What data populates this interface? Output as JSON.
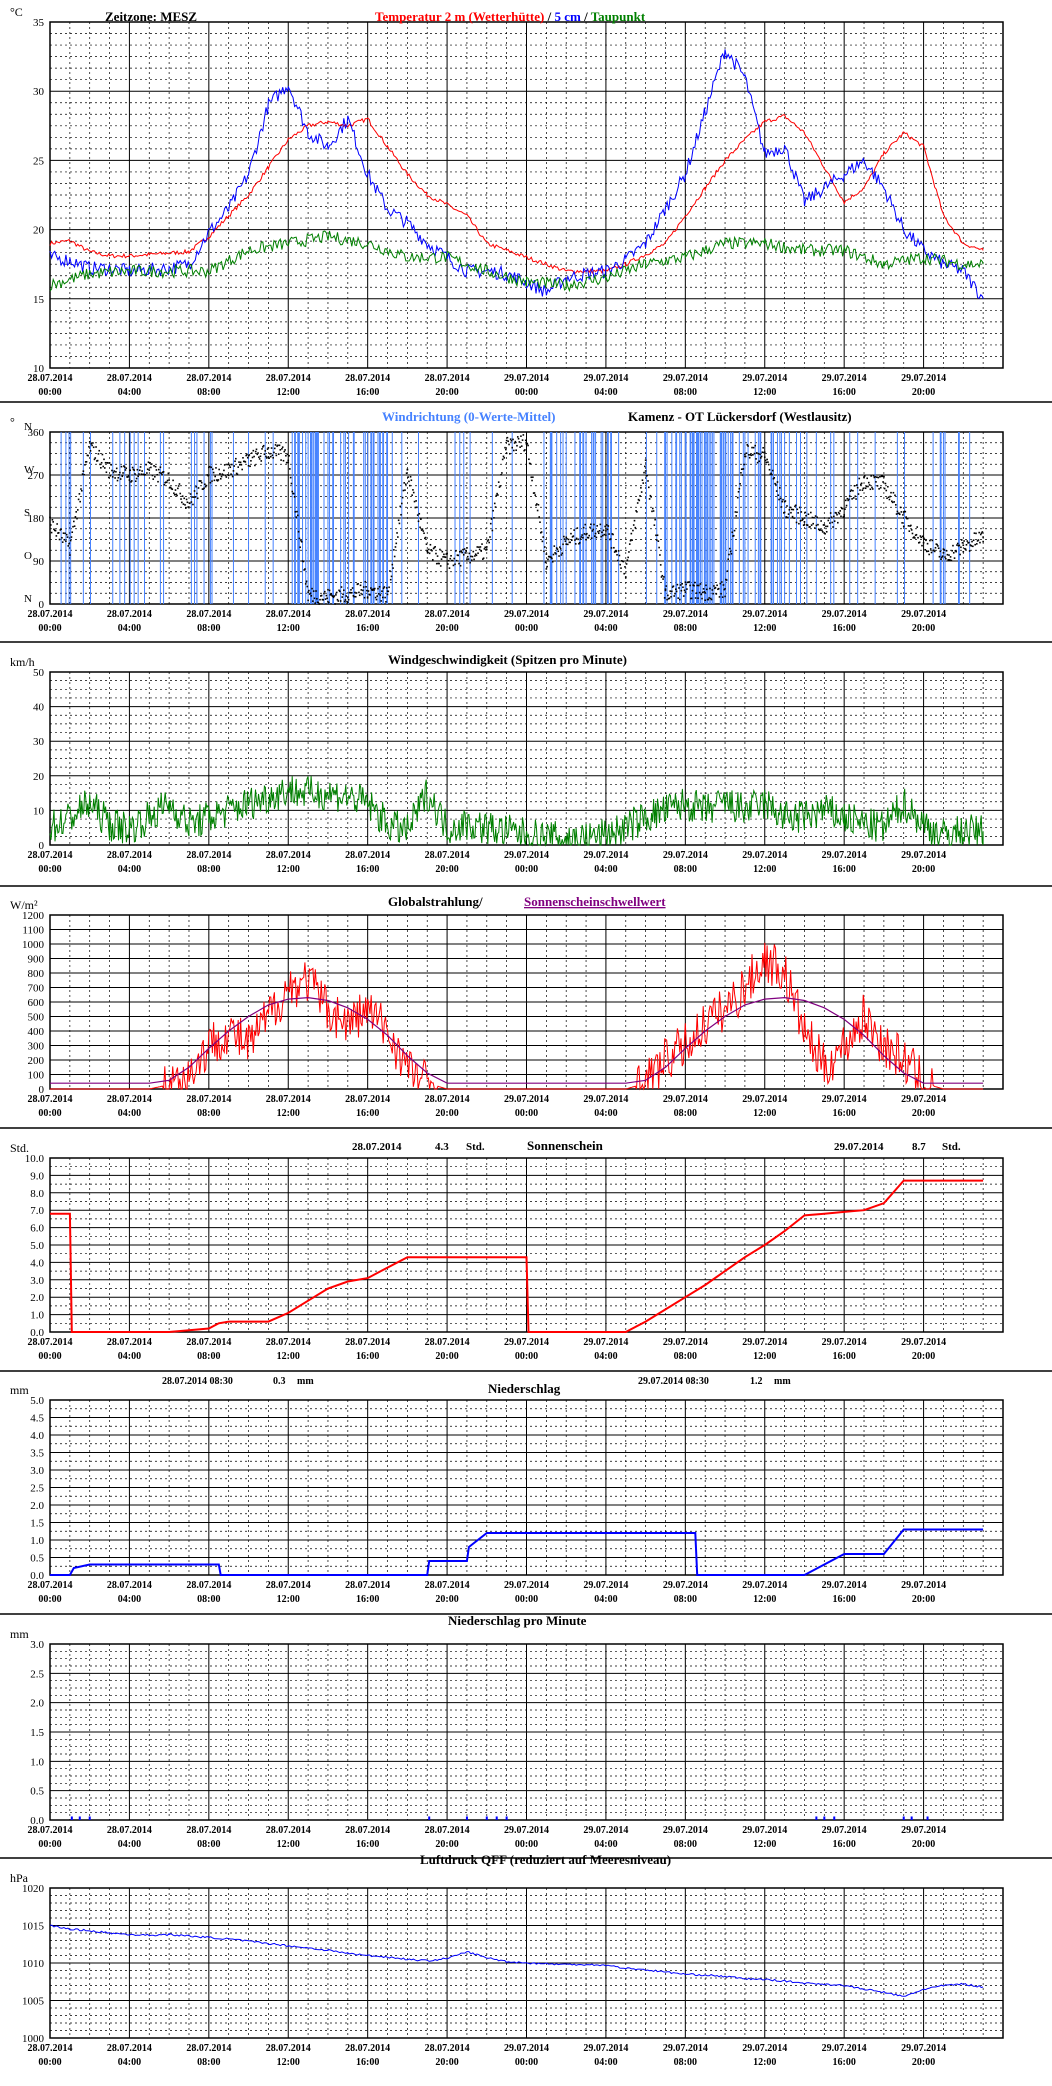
{
  "x_tick_labels": [
    [
      "28.07.2014",
      "00:00"
    ],
    [
      "28.07.2014",
      "04:00"
    ],
    [
      "28.07.2014",
      "08:00"
    ],
    [
      "28.07.2014",
      "12:00"
    ],
    [
      "28.07.2014",
      "16:00"
    ],
    [
      "28.07.2014",
      "20:00"
    ],
    [
      "29.07.2014",
      "00:00"
    ],
    [
      "29.07.2014",
      "04:00"
    ],
    [
      "29.07.2014",
      "08:00"
    ],
    [
      "29.07.2014",
      "12:00"
    ],
    [
      "29.07.2014",
      "16:00"
    ],
    [
      "29.07.2014",
      "20:00"
    ]
  ],
  "colors": {
    "grid": "#000000",
    "red": "#ff0000",
    "blue": "#0000ff",
    "green": "#008000",
    "purple": "#800080",
    "lightblue": "#4682ff"
  },
  "panels": {
    "temperature": {
      "unit": "°C",
      "timezone": "Zeitzone: MESZ",
      "title_red": "Temperatur 2 m (Wetterhütte)",
      "title_sep": "/",
      "title_blue": "5 cm",
      "title_sep2": "/",
      "title_green": "Taupunkt",
      "yticks": [
        "10",
        "15",
        "20",
        "25",
        "30",
        "35"
      ]
    },
    "wind_dir": {
      "unit": "°",
      "title_blue": "Windrichtung (0-Werte-Mittel)",
      "title_black": "Kamenz - OT Lückersdorf (Westlausitz)",
      "yticks": [
        "0",
        "90",
        "180",
        "270",
        "360"
      ],
      "compass": [
        "N",
        "O",
        "S",
        "W",
        "N"
      ]
    },
    "wind_speed": {
      "unit": "km/h",
      "title": "Windgeschwindigkeit (Spitzen pro Minute)",
      "yticks": [
        "0",
        "10",
        "20",
        "30",
        "40",
        "50"
      ]
    },
    "radiation": {
      "unit": "W/m²",
      "title_black": "Globalstrahlung/",
      "title_purple": "Sonnenscheinschwellwert",
      "yticks": [
        "0",
        "100",
        "200",
        "300",
        "400",
        "500",
        "600",
        "700",
        "800",
        "900",
        "1000",
        "1100",
        "1200"
      ]
    },
    "sunshine": {
      "unit": "Std.",
      "title": "Sonnenschein",
      "day1_date": "28.07.2014",
      "day1_value": "4.3",
      "day1_unit": "Std.",
      "day2_date": "29.07.2014",
      "day2_value": "8.7",
      "day2_unit": "Std.",
      "yticks": [
        "0.0",
        "1.0",
        "2.0",
        "3.0",
        "4.0",
        "5.0",
        "6.0",
        "7.0",
        "8.0",
        "9.0",
        "10.0"
      ]
    },
    "precip": {
      "unit": "mm",
      "title": "Niederschlag",
      "day1_date": "28.07.2014 08:30",
      "day1_value": "0.3",
      "day1_unit": "mm",
      "day2_date": "29.07.2014 08:30",
      "day2_value": "1.2",
      "day2_unit": "mm",
      "yticks": [
        "0.0",
        "0.5",
        "1.0",
        "1.5",
        "2.0",
        "2.5",
        "3.0",
        "3.5",
        "4.0",
        "4.5",
        "5.0"
      ]
    },
    "precip_min": {
      "unit": "mm",
      "title": "Niederschlag pro Minute",
      "yticks": [
        "0.0",
        "0.5",
        "1.0",
        "1.5",
        "2.0",
        "2.5",
        "3.0"
      ]
    },
    "pressure": {
      "unit": "hPa",
      "title": "Luftdruck QFF (reduziert auf Meeresniveau)",
      "yticks": [
        "1000",
        "1005",
        "1010",
        "1015",
        "1020"
      ]
    }
  },
  "chart_data": [
    {
      "type": "line",
      "panel": "temperature",
      "x_unit": "hours since 28.07.2014 00:00 (MESZ)",
      "ylim": [
        10,
        35
      ],
      "series": [
        {
          "name": "Temperatur 2 m (Wetterhütte)",
          "color": "#ff0000",
          "x": [
            0,
            1,
            2,
            3,
            4,
            5,
            6,
            7,
            8,
            9,
            10,
            11,
            12,
            13,
            14,
            15,
            16,
            17,
            18,
            19,
            20,
            21,
            22,
            23,
            24,
            25,
            26,
            27,
            28,
            29,
            30,
            31,
            32,
            33,
            34,
            35,
            36,
            37,
            38,
            39,
            40,
            41,
            42,
            43,
            44,
            45,
            46,
            47
          ],
          "y": [
            19,
            19.2,
            18.4,
            18.1,
            18.1,
            18.2,
            18.3,
            18.4,
            19.5,
            21,
            22.5,
            24.5,
            26.5,
            27.5,
            27.8,
            27.5,
            28,
            26,
            24,
            22.5,
            21.8,
            21,
            19,
            18.5,
            18,
            17.5,
            17,
            17,
            17,
            17.5,
            18.2,
            19,
            21,
            23,
            25,
            26.5,
            27.8,
            28.2,
            27,
            24.5,
            22,
            23,
            25.5,
            27,
            26,
            21,
            19,
            18.5
          ]
        },
        {
          "name": "5 cm",
          "color": "#0000ff",
          "x": [
            0,
            1,
            2,
            3,
            4,
            5,
            6,
            7,
            8,
            9,
            10,
            11,
            12,
            13,
            14,
            15,
            16,
            17,
            18,
            19,
            20,
            21,
            22,
            23,
            24,
            25,
            26,
            27,
            28,
            29,
            30,
            31,
            32,
            33,
            34,
            35,
            36,
            37,
            38,
            39,
            40,
            41,
            42,
            43,
            44,
            45,
            46,
            47
          ],
          "y": [
            18,
            17.8,
            17.2,
            17.2,
            17,
            17.1,
            17.2,
            17.5,
            19.8,
            21.5,
            24,
            29,
            30.5,
            27,
            26,
            28,
            24,
            21.5,
            20.5,
            19,
            18,
            17,
            17,
            16.8,
            16.2,
            15.5,
            16.5,
            16.8,
            17,
            17.8,
            19,
            21.5,
            24,
            28.5,
            33,
            31,
            25.5,
            26,
            22,
            23,
            24,
            25,
            23,
            20,
            18.5,
            17.5,
            17,
            15
          ]
        },
        {
          "name": "Taupunkt",
          "color": "#008000",
          "x": [
            0,
            2,
            4,
            6,
            8,
            10,
            12,
            14,
            16,
            18,
            20,
            22,
            24,
            26,
            28,
            30,
            32,
            34,
            36,
            38,
            40,
            42,
            44,
            46,
            47
          ],
          "y": [
            16,
            16.8,
            17,
            17,
            17,
            18.5,
            19,
            19.5,
            19,
            18,
            18,
            17,
            16.2,
            16,
            16.5,
            17.5,
            18,
            19,
            19,
            18.5,
            18.5,
            17.5,
            18,
            17.5,
            17.5
          ]
        }
      ]
    },
    {
      "type": "scatter",
      "panel": "wind_dir",
      "x_unit": "hours since 28.07.2014 00:00",
      "ylim": [
        0,
        360
      ],
      "yunit": "degrees",
      "series": [
        {
          "name": "Windrichtung (0-Werte-Mittel)",
          "x": [
            0,
            1,
            2,
            3,
            4,
            5,
            6,
            7,
            8,
            9,
            10,
            11,
            12,
            13,
            14,
            15,
            16,
            17,
            18,
            19,
            20,
            21,
            22,
            23,
            24,
            25,
            26,
            27,
            28,
            29,
            30,
            31,
            32,
            33,
            34,
            35,
            36,
            37,
            38,
            39,
            40,
            41,
            42,
            43,
            44,
            45,
            46,
            47
          ],
          "y": [
            170,
            120,
            330,
            280,
            270,
            280,
            260,
            210,
            270,
            280,
            300,
            320,
            310,
            20,
            15,
            20,
            30,
            20,
            280,
            110,
            90,
            100,
            110,
            330,
            340,
            90,
            130,
            150,
            160,
            70,
            290,
            20,
            30,
            25,
            30,
            320,
            310,
            200,
            180,
            160,
            200,
            260,
            250,
            180,
            130,
            100,
            120,
            140
          ]
        }
      ]
    },
    {
      "type": "line",
      "panel": "wind_speed",
      "x_unit": "hours since 28.07.2014 00:00",
      "ylim": [
        0,
        50
      ],
      "yunit": "km/h",
      "series": [
        {
          "name": "Windgeschwindigkeit (Spitzen pro Minute)",
          "x": [
            0,
            1,
            2,
            3,
            4,
            5,
            6,
            7,
            8,
            9,
            10,
            11,
            12,
            13,
            14,
            15,
            16,
            17,
            18,
            19,
            20,
            21,
            22,
            23,
            24,
            25,
            26,
            27,
            28,
            29,
            30,
            31,
            32,
            33,
            34,
            35,
            36,
            37,
            38,
            39,
            40,
            41,
            42,
            43,
            44,
            45,
            46,
            47
          ],
          "y": [
            5,
            8,
            12,
            6,
            5,
            8,
            12,
            6,
            8,
            10,
            12,
            14,
            16,
            15,
            15,
            14,
            12,
            6,
            4,
            15,
            5,
            6,
            5,
            4,
            3,
            2,
            2,
            2,
            3,
            5,
            8,
            10,
            12,
            10,
            12,
            10,
            12,
            8,
            8,
            10,
            8,
            6,
            5,
            12,
            6,
            3,
            4,
            4
          ]
        }
      ]
    },
    {
      "type": "line",
      "panel": "radiation",
      "x_unit": "hours since 28.07.2014 00:00",
      "ylim": [
        0,
        1200
      ],
      "yunit": "W/m²",
      "series": [
        {
          "name": "Globalstrahlung",
          "color": "#ff0000",
          "x": [
            0,
            5,
            6,
            7,
            8,
            9,
            10,
            11,
            12,
            13,
            14,
            15,
            16,
            17,
            18,
            19,
            20,
            24,
            29,
            30,
            31,
            32,
            33,
            34,
            35,
            36,
            37,
            38,
            39,
            40,
            41,
            42,
            43,
            44,
            45,
            46,
            47
          ],
          "y": [
            0,
            0,
            30,
            100,
            300,
            400,
            300,
            500,
            700,
            750,
            550,
            450,
            550,
            400,
            150,
            40,
            0,
            0,
            0,
            40,
            200,
            300,
            450,
            550,
            700,
            900,
            800,
            400,
            150,
            300,
            500,
            300,
            200,
            40,
            0,
            0,
            0
          ]
        },
        {
          "name": "Sonnenscheinschwellwert",
          "color": "#800080",
          "x": [
            0,
            5,
            6,
            7,
            8,
            9,
            10,
            11,
            12,
            13,
            14,
            15,
            16,
            17,
            18,
            19,
            20,
            24,
            29,
            30,
            31,
            32,
            33,
            34,
            35,
            36,
            37,
            38,
            39,
            40,
            41,
            42,
            43,
            44,
            45,
            47
          ],
          "y": [
            40,
            40,
            60,
            150,
            280,
            400,
            500,
            580,
            620,
            630,
            610,
            560,
            480,
            370,
            230,
            110,
            40,
            40,
            40,
            60,
            150,
            280,
            400,
            500,
            580,
            620,
            630,
            610,
            560,
            480,
            370,
            230,
            110,
            40,
            40,
            40
          ]
        }
      ]
    },
    {
      "type": "line",
      "panel": "sunshine",
      "x_unit": "hours since 28.07.2014 00:00",
      "ylim": [
        0,
        10
      ],
      "yunit": "Std.",
      "series": [
        {
          "name": "Sonnenschein",
          "x": [
            0,
            1,
            1.1,
            6,
            7,
            8,
            8.5,
            9,
            11,
            12,
            13,
            14,
            15,
            16,
            17,
            18,
            24,
            24.1,
            29,
            30,
            31,
            32,
            33,
            34,
            35,
            36,
            37,
            38,
            39,
            40,
            41,
            42,
            43,
            47
          ],
          "y": [
            6.8,
            6.8,
            0,
            0,
            0.1,
            0.2,
            0.5,
            0.6,
            0.6,
            1.1,
            1.8,
            2.5,
            2.9,
            3.1,
            3.7,
            4.3,
            4.3,
            0,
            0,
            0.6,
            1.3,
            2.0,
            2.7,
            3.5,
            4.3,
            5.0,
            5.8,
            6.7,
            6.8,
            6.9,
            7.0,
            7.4,
            8.7,
            8.7
          ]
        }
      ]
    },
    {
      "type": "line",
      "panel": "precip",
      "x_unit": "hours since 28.07.2014 00:00",
      "ylim": [
        0,
        5
      ],
      "yunit": "mm",
      "series": [
        {
          "name": "Niederschlag",
          "x": [
            0,
            1,
            1.2,
            2,
            8.5,
            8.6,
            19,
            19.1,
            21,
            21.1,
            22,
            24,
            32.5,
            32.6,
            38,
            39,
            40,
            42,
            43,
            47
          ],
          "y": [
            0,
            0,
            0.2,
            0.3,
            0.3,
            0,
            0,
            0.4,
            0.4,
            0.8,
            1.2,
            1.2,
            1.2,
            0,
            0,
            0.3,
            0.6,
            0.6,
            1.3,
            1.3
          ]
        }
      ]
    },
    {
      "type": "bar",
      "panel": "precip_min",
      "x_unit": "hours since 28.07.2014 00:00",
      "ylim": [
        0,
        3
      ],
      "yunit": "mm",
      "series": [
        {
          "name": "Niederschlag pro Minute",
          "x": [
            1.1,
            1.5,
            2.0,
            19.1,
            21.0,
            22.0,
            22.5,
            23.0,
            38.6,
            39.0,
            39.5,
            43.0,
            43.4,
            44.2
          ],
          "y": [
            0.1,
            0.1,
            0.1,
            0.1,
            0.1,
            0.1,
            0.1,
            0.1,
            0.1,
            0.1,
            0.1,
            0.1,
            0.1,
            0.1
          ]
        }
      ]
    },
    {
      "type": "line",
      "panel": "pressure",
      "x_unit": "hours since 28.07.2014 00:00",
      "ylim": [
        1000,
        1020
      ],
      "yunit": "hPa",
      "series": [
        {
          "name": "Luftdruck QFF",
          "x": [
            0,
            1,
            2,
            3,
            4,
            5,
            6,
            7,
            8,
            9,
            10,
            11,
            12,
            13,
            14,
            15,
            16,
            17,
            18,
            19,
            20,
            21,
            22,
            23,
            24,
            25,
            26,
            27,
            28,
            29,
            30,
            31,
            32,
            33,
            34,
            35,
            36,
            37,
            38,
            39,
            40,
            41,
            42,
            43,
            44,
            45,
            46,
            47
          ],
          "y": [
            1015,
            1014.5,
            1014.3,
            1014,
            1013.8,
            1013.7,
            1013.8,
            1013.6,
            1013.4,
            1013.2,
            1012.9,
            1012.6,
            1012.3,
            1012,
            1011.7,
            1011.3,
            1011,
            1010.8,
            1010.5,
            1010.3,
            1010.6,
            1011.5,
            1010.7,
            1010.2,
            1010,
            1009.9,
            1009.8,
            1009.8,
            1009.7,
            1009.3,
            1009.1,
            1008.8,
            1008.5,
            1008.4,
            1008.2,
            1007.9,
            1007.8,
            1007.6,
            1007.3,
            1007.2,
            1007,
            1006.5,
            1006.1,
            1005.5,
            1006.5,
            1007,
            1007.2,
            1006.8
          ]
        }
      ]
    }
  ]
}
